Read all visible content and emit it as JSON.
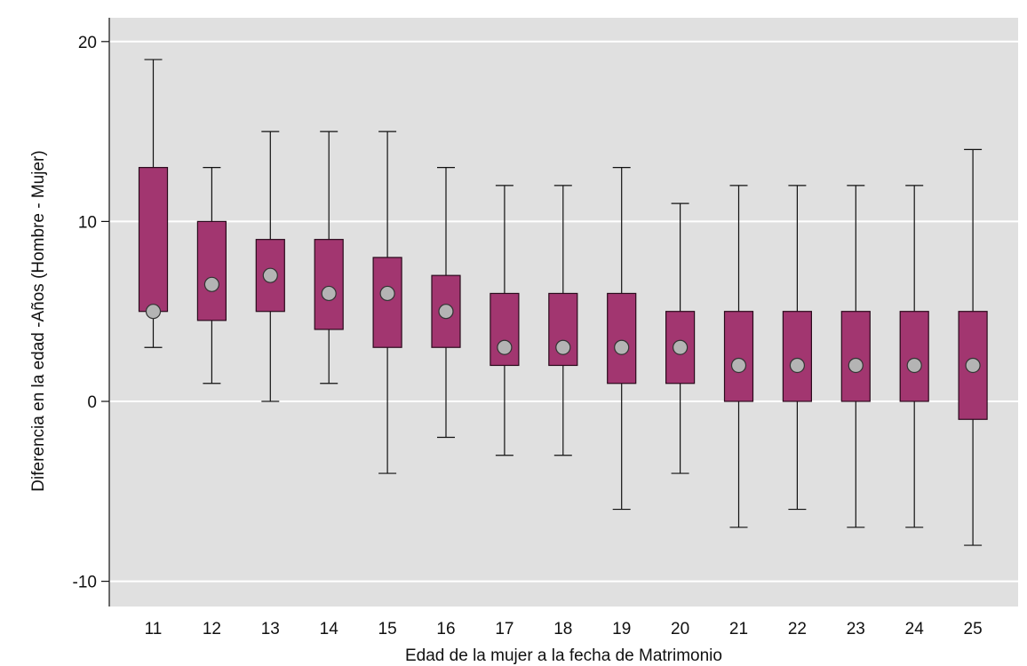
{
  "chart_data": {
    "type": "box",
    "xlabel": "Edad de la mujer a la fecha de Matrimonio",
    "ylabel": "Diferencia en la edad -Años  (Hombre - Mujer)",
    "ylim": [
      -11.4,
      21.4
    ],
    "yticks": [
      -10,
      0,
      10,
      20
    ],
    "ytick_labels": [
      "-10",
      "0",
      "10",
      "20"
    ],
    "grid": true,
    "categories": [
      "11",
      "12",
      "13",
      "14",
      "15",
      "16",
      "17",
      "18",
      "19",
      "20",
      "21",
      "22",
      "23",
      "24",
      "25"
    ],
    "boxes": [
      {
        "category": "11",
        "whisker_low": 3,
        "q1": 5,
        "q3": 13,
        "median": 5,
        "whisker_high": 19
      },
      {
        "category": "12",
        "whisker_low": 1,
        "q1": 4.5,
        "q3": 10,
        "median": 6.5,
        "whisker_high": 13
      },
      {
        "category": "13",
        "whisker_low": 0,
        "q1": 5,
        "q3": 9,
        "median": 7,
        "whisker_high": 15
      },
      {
        "category": "14",
        "whisker_low": 1,
        "q1": 4,
        "q3": 9,
        "median": 6,
        "whisker_high": 15
      },
      {
        "category": "15",
        "whisker_low": -4,
        "q1": 3,
        "q3": 8,
        "median": 6,
        "whisker_high": 15
      },
      {
        "category": "16",
        "whisker_low": -2,
        "q1": 3,
        "q3": 7,
        "median": 5,
        "whisker_high": 13
      },
      {
        "category": "17",
        "whisker_low": -3,
        "q1": 2,
        "q3": 6,
        "median": 3,
        "whisker_high": 12
      },
      {
        "category": "18",
        "whisker_low": -3,
        "q1": 2,
        "q3": 6,
        "median": 3,
        "whisker_high": 12
      },
      {
        "category": "19",
        "whisker_low": -6,
        "q1": 1,
        "q3": 6,
        "median": 3,
        "whisker_high": 13
      },
      {
        "category": "20",
        "whisker_low": -4,
        "q1": 1,
        "q3": 5,
        "median": 3,
        "whisker_high": 11
      },
      {
        "category": "21",
        "whisker_low": -7,
        "q1": 0,
        "q3": 5,
        "median": 2,
        "whisker_high": 12
      },
      {
        "category": "22",
        "whisker_low": -6,
        "q1": 0,
        "q3": 5,
        "median": 2,
        "whisker_high": 12
      },
      {
        "category": "23",
        "whisker_low": -7,
        "q1": 0,
        "q3": 5,
        "median": 2,
        "whisker_high": 12
      },
      {
        "category": "24",
        "whisker_low": -7,
        "q1": 0,
        "q3": 5,
        "median": 2,
        "whisker_high": 12
      },
      {
        "category": "25",
        "whisker_low": -8,
        "q1": -1,
        "q3": 5,
        "median": 2,
        "whisker_high": 14
      }
    ],
    "colors": {
      "plot_background": "#e0e0e0",
      "box_fill": "#a23670",
      "box_stroke": "#2a0a1c",
      "median_marker": "#b4b4b4",
      "gridline": "#ffffff",
      "whisker": "#111111"
    }
  }
}
